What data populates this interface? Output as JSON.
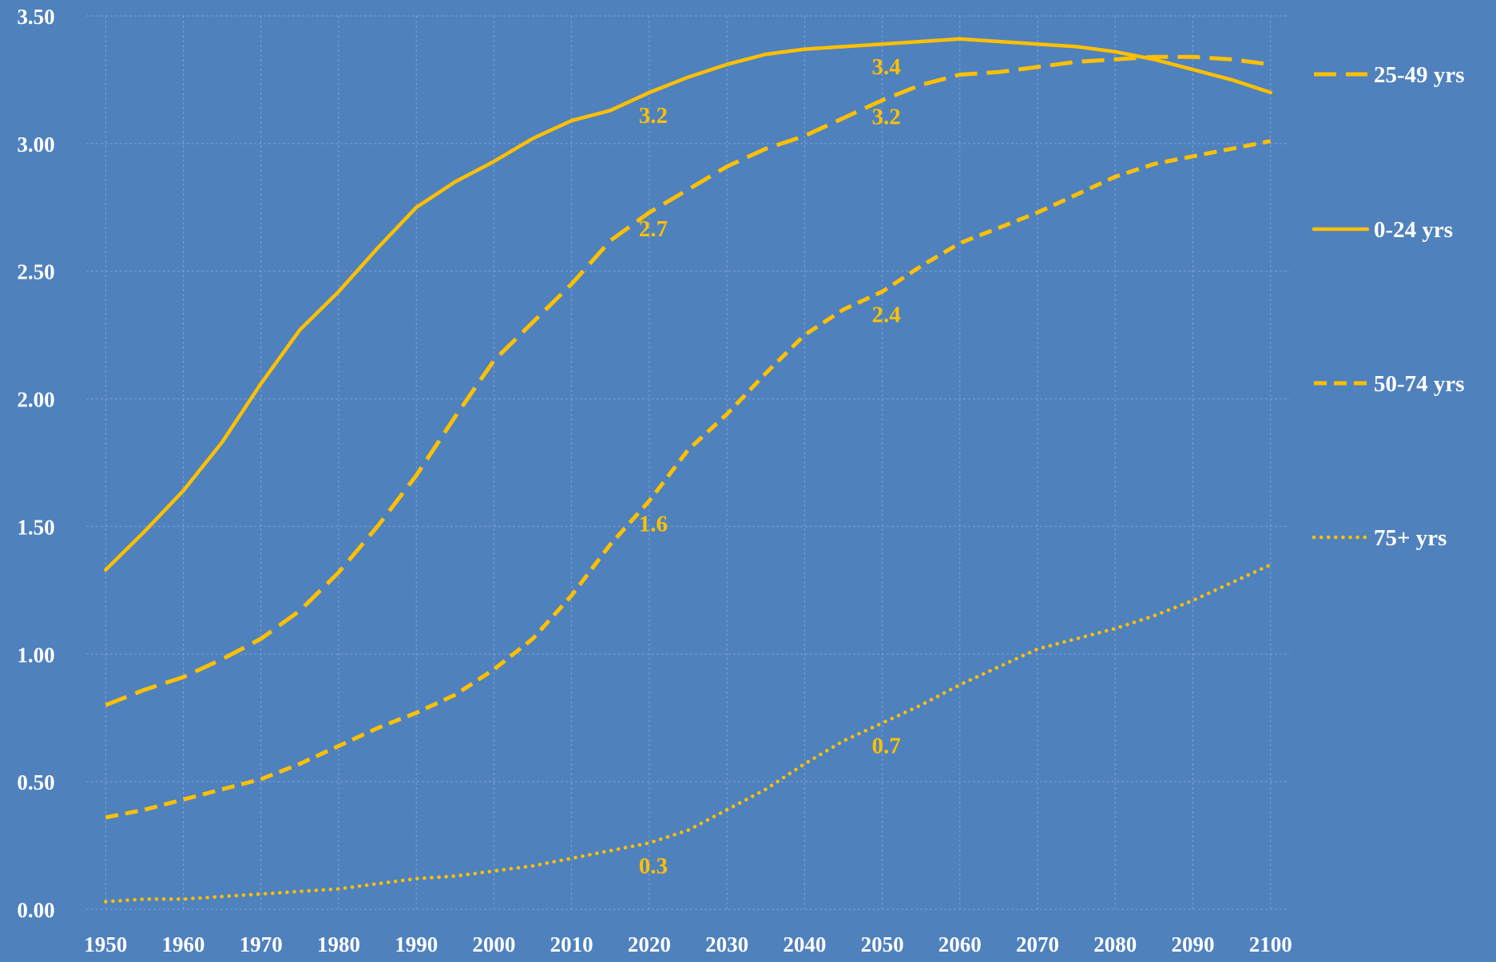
{
  "chart_data": {
    "type": "line",
    "title": "",
    "xlabel": "",
    "ylabel": "",
    "xlim": [
      1950,
      2100
    ],
    "ylim": [
      0,
      3.5
    ],
    "x_ticks": [
      "1950",
      "1960",
      "1970",
      "1980",
      "1990",
      "2000",
      "2010",
      "2020",
      "2030",
      "2040",
      "2050",
      "2060",
      "2070",
      "2080",
      "2090",
      "2100"
    ],
    "y_ticks": [
      "0.00",
      "0.50",
      "1.00",
      "1.50",
      "2.00",
      "2.50",
      "3.00",
      "3.50"
    ],
    "grid": true,
    "legend_position": "right",
    "colors": {
      "background": "#4F81BD",
      "line": "#FFC000",
      "text": "#FFFFFF",
      "grid": "#7FA2CF"
    },
    "series": [
      {
        "name": "25-49 yrs",
        "style": "long-dash",
        "x": [
          1950,
          1955,
          1960,
          1965,
          1970,
          1975,
          1980,
          1985,
          1990,
          1995,
          2000,
          2005,
          2010,
          2015,
          2020,
          2025,
          2030,
          2035,
          2040,
          2045,
          2050,
          2055,
          2060,
          2065,
          2070,
          2075,
          2080,
          2085,
          2090,
          2095,
          2100
        ],
        "values": [
          0.8,
          0.86,
          0.91,
          0.98,
          1.06,
          1.17,
          1.32,
          1.5,
          1.7,
          1.93,
          2.15,
          2.3,
          2.45,
          2.62,
          2.73,
          2.82,
          2.91,
          2.98,
          3.03,
          3.1,
          3.17,
          3.23,
          3.27,
          3.28,
          3.3,
          3.32,
          3.33,
          3.34,
          3.34,
          3.33,
          3.31
        ],
        "labels": [
          {
            "x": 2020,
            "text": "2.7"
          },
          {
            "x": 2050,
            "text": "3.2"
          }
        ]
      },
      {
        "name": "0-24 yrs",
        "style": "solid",
        "x": [
          1950,
          1955,
          1960,
          1965,
          1970,
          1975,
          1980,
          1985,
          1990,
          1995,
          2000,
          2005,
          2010,
          2015,
          2020,
          2025,
          2030,
          2035,
          2040,
          2045,
          2050,
          2055,
          2060,
          2065,
          2070,
          2075,
          2080,
          2085,
          2090,
          2095,
          2100
        ],
        "values": [
          1.33,
          1.48,
          1.64,
          1.83,
          2.06,
          2.27,
          2.42,
          2.59,
          2.75,
          2.85,
          2.93,
          3.02,
          3.09,
          3.13,
          3.2,
          3.26,
          3.31,
          3.35,
          3.37,
          3.38,
          3.39,
          3.4,
          3.41,
          3.4,
          3.39,
          3.38,
          3.36,
          3.33,
          3.29,
          3.25,
          3.2
        ],
        "labels": [
          {
            "x": 2020,
            "text": "3.2"
          },
          {
            "x": 2050,
            "text": "3.4"
          }
        ]
      },
      {
        "name": "50-74 yrs",
        "style": "short-dash",
        "x": [
          1950,
          1955,
          1960,
          1965,
          1970,
          1975,
          1980,
          1985,
          1990,
          1995,
          2000,
          2005,
          2010,
          2015,
          2020,
          2025,
          2030,
          2035,
          2040,
          2045,
          2050,
          2055,
          2060,
          2065,
          2070,
          2075,
          2080,
          2085,
          2090,
          2095,
          2100
        ],
        "values": [
          0.36,
          0.39,
          0.43,
          0.47,
          0.51,
          0.57,
          0.64,
          0.71,
          0.77,
          0.84,
          0.94,
          1.06,
          1.23,
          1.43,
          1.6,
          1.8,
          1.94,
          2.1,
          2.25,
          2.35,
          2.42,
          2.52,
          2.61,
          2.67,
          2.73,
          2.8,
          2.87,
          2.92,
          2.95,
          2.98,
          3.01
        ],
        "labels": [
          {
            "x": 2020,
            "text": "1.6"
          },
          {
            "x": 2050,
            "text": "2.4"
          }
        ]
      },
      {
        "name": "75+ yrs",
        "style": "dotted",
        "x": [
          1950,
          1955,
          1960,
          1965,
          1970,
          1975,
          1980,
          1985,
          1990,
          1995,
          2000,
          2005,
          2010,
          2015,
          2020,
          2025,
          2030,
          2035,
          2040,
          2045,
          2050,
          2055,
          2060,
          2065,
          2070,
          2075,
          2080,
          2085,
          2090,
          2095,
          2100
        ],
        "values": [
          0.03,
          0.04,
          0.04,
          0.05,
          0.06,
          0.07,
          0.08,
          0.1,
          0.12,
          0.13,
          0.15,
          0.17,
          0.2,
          0.23,
          0.26,
          0.31,
          0.39,
          0.47,
          0.57,
          0.66,
          0.73,
          0.8,
          0.88,
          0.95,
          1.02,
          1.06,
          1.1,
          1.15,
          1.21,
          1.28,
          1.35
        ],
        "labels": [
          {
            "x": 2020,
            "text": "0.3"
          },
          {
            "x": 2050,
            "text": "0.7"
          }
        ]
      }
    ]
  }
}
